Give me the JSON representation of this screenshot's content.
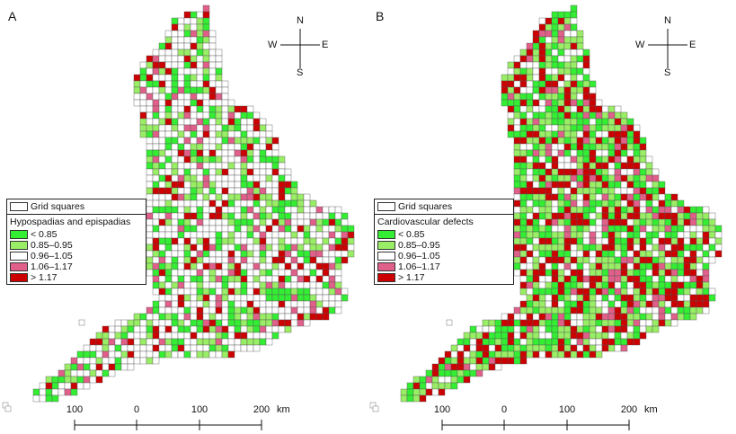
{
  "panels": [
    {
      "letter": "A",
      "legend": {
        "grid_label": "Grid squares",
        "title": "Hypospadias and epispadias",
        "classes": [
          {
            "label": "< 0.85",
            "color": "#33ee33"
          },
          {
            "label": "0.85–0.95",
            "color": "#99ee66"
          },
          {
            "label": "0.96–1.05",
            "color": "#ffffff"
          },
          {
            "label": "1.06–1.17",
            "color": "#e0608a"
          },
          {
            "label": "> 1.17",
            "color": "#cc0000"
          }
        ]
      }
    },
    {
      "letter": "B",
      "legend": {
        "grid_label": "Grid squares",
        "title": "Cardiovascular defects",
        "classes": [
          {
            "label": "< 0.85",
            "color": "#33ee33"
          },
          {
            "label": "0.85–0.95",
            "color": "#99ee66"
          },
          {
            "label": "0.96–1.05",
            "color": "#ffffff"
          },
          {
            "label": "1.06–1.17",
            "color": "#e0608a"
          },
          {
            "label": "> 1.17",
            "color": "#cc0000"
          }
        ]
      }
    }
  ],
  "compass": {
    "n": "N",
    "s": "S",
    "e": "E",
    "w": "W"
  },
  "scale": {
    "ticks": [
      "100",
      "0",
      "100",
      "200"
    ],
    "unit": "km"
  }
}
